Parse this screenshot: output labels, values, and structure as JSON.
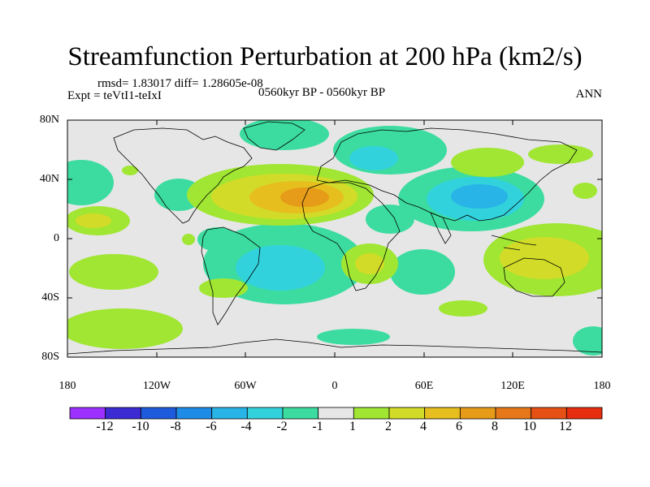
{
  "title": "Streamfunction Perturbation at 200 hPa (km2/s)",
  "stats": "rmsd= 1.83017 diff= 1.28605e-08",
  "experiment": "Expt = teVtI1-teIxI",
  "period": "0560kyr BP - 0560kyr BP",
  "season": "ANN",
  "lat_labels": [
    "80N",
    "40N",
    "0",
    "40S",
    "80S"
  ],
  "lon_labels": [
    "180",
    "120W",
    "60W",
    "0",
    "60E",
    "120E",
    "180"
  ],
  "colorbar": {
    "labels": [
      "-12",
      "-10",
      "-8",
      "-6",
      "-4",
      "-2",
      "-1",
      "1",
      "2",
      "4",
      "6",
      "8",
      "10",
      "12"
    ],
    "colors": [
      "#9b30ff",
      "#3c2ad2",
      "#1e5adc",
      "#1e8ce6",
      "#28b4e6",
      "#32d2dc",
      "#3cdca0",
      "#e6e6e6",
      "#a0e632",
      "#d2dc28",
      "#e6be1e",
      "#e69b19",
      "#e67819",
      "#e65014",
      "#e62d0f"
    ]
  },
  "field_colors": {
    "background": "#e6e6e6",
    "neg1": "#3cdca0",
    "neg2": "#32d2dc",
    "neg3": "#28b4e6",
    "neg4": "#1e8ce6",
    "pos1": "#a0e632",
    "pos2": "#d2dc28",
    "pos3": "#e6be1e",
    "pos4": "#e69b19",
    "pos5": "#e67819"
  }
}
